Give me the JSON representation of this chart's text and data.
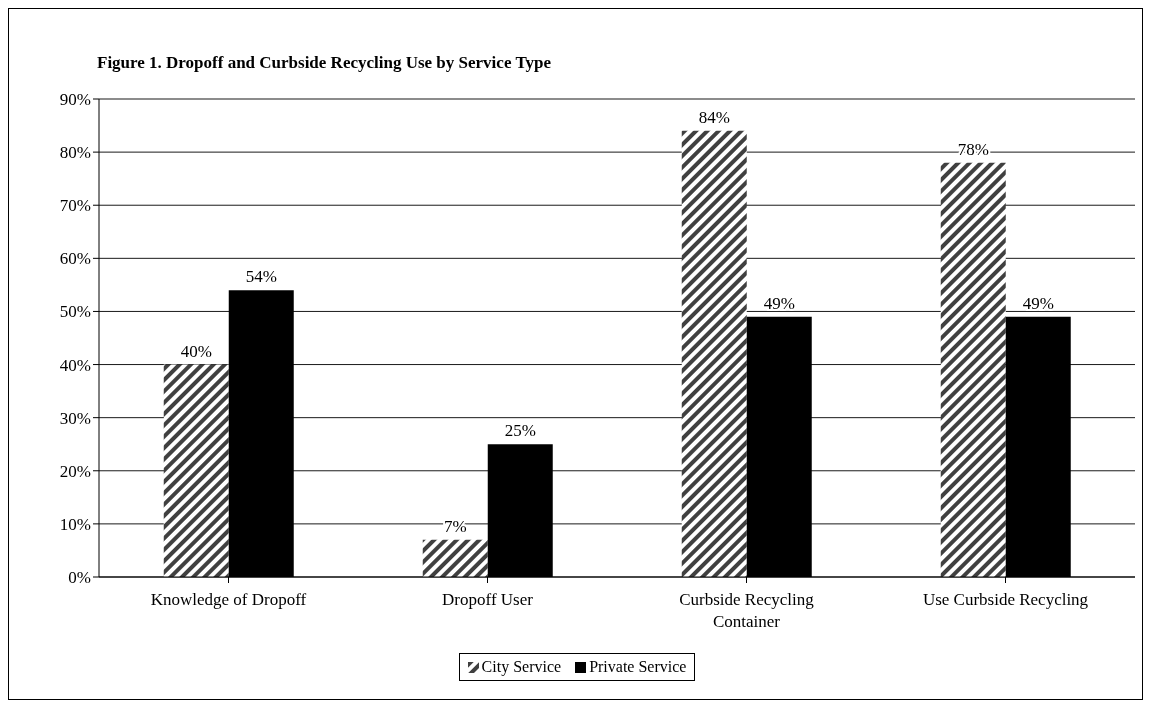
{
  "chart_data": {
    "type": "bar",
    "title": "Figure 1. Dropoff and Curbside Recycling Use by Service Type",
    "categories": [
      "Knowledge of Dropoff",
      "Dropoff User",
      "Curbside Recycling Container",
      "Use Curbside Recycling"
    ],
    "series": [
      {
        "name": "City Service",
        "color": "#404040",
        "values": [
          40,
          7,
          84,
          78
        ],
        "value_labels": [
          "40%",
          "7%",
          "84%",
          "78%"
        ]
      },
      {
        "name": "Private Service",
        "color": "#000000",
        "values": [
          54,
          25,
          49,
          49
        ],
        "value_labels": [
          "54%",
          "25%",
          "49%",
          "49%"
        ]
      }
    ],
    "ylim": [
      0,
      90
    ],
    "yticks": [
      {
        "value": 0,
        "label": "0%"
      },
      {
        "value": 10,
        "label": "10%"
      },
      {
        "value": 20,
        "label": "20%"
      },
      {
        "value": 30,
        "label": "30%"
      },
      {
        "value": 40,
        "label": "40%"
      },
      {
        "value": 50,
        "label": "50%"
      },
      {
        "value": 60,
        "label": "60%"
      },
      {
        "value": 70,
        "label": "70%"
      },
      {
        "value": 80,
        "label": "80%"
      },
      {
        "value": 90,
        "label": "90%"
      }
    ],
    "grid": "y",
    "legend": "bottom"
  }
}
